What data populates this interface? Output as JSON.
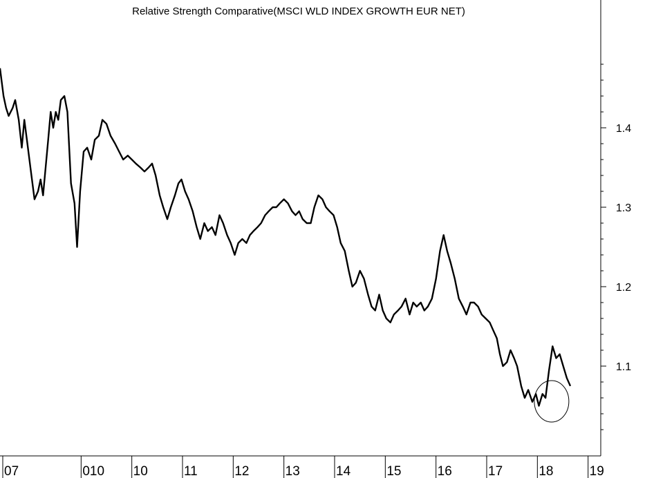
{
  "chart_data": {
    "type": "line",
    "title": "Relative Strength Comparative(MSCI WLD INDEX GROWTH EUR NET)",
    "xlabel": "",
    "ylabel": "",
    "ylim": [
      1.0,
      1.52
    ],
    "y_ticks": [
      "1.1",
      "1.2",
      "1.3",
      "1.4"
    ],
    "y_tick_values": [
      1.1,
      1.2,
      1.3,
      1.4
    ],
    "x_tick_labels": [
      "07",
      "010",
      "10",
      "11",
      "12",
      "13",
      "14",
      "15",
      "16",
      "17",
      "18",
      "19"
    ],
    "x_tick_positions": [
      2007.0,
      2008.6,
      2009.6,
      2010.6,
      2011.6,
      2012.6,
      2013.6,
      2014.6,
      2015.6,
      2016.6,
      2017.6,
      2018.6
    ],
    "xlim": [
      2007.0,
      2018.85
    ],
    "legend": "none",
    "grid": false,
    "line_color": "#000000",
    "annotation": {
      "type": "circle",
      "x": 2017.88,
      "y": 1.06,
      "description": "circle around recent low"
    },
    "series": [
      {
        "values": [
          [
            2007.0,
            1.475
          ],
          [
            2007.07,
            1.44
          ],
          [
            2007.12,
            1.425
          ],
          [
            2007.17,
            1.415
          ],
          [
            2007.25,
            1.425
          ],
          [
            2007.3,
            1.435
          ],
          [
            2007.37,
            1.41
          ],
          [
            2007.43,
            1.375
          ],
          [
            2007.48,
            1.41
          ],
          [
            2007.53,
            1.385
          ],
          [
            2007.6,
            1.35
          ],
          [
            2007.68,
            1.31
          ],
          [
            2007.75,
            1.32
          ],
          [
            2007.8,
            1.335
          ],
          [
            2007.85,
            1.315
          ],
          [
            2007.9,
            1.35
          ],
          [
            2007.95,
            1.385
          ],
          [
            2008.0,
            1.42
          ],
          [
            2008.05,
            1.4
          ],
          [
            2008.1,
            1.42
          ],
          [
            2008.15,
            1.41
          ],
          [
            2008.2,
            1.435
          ],
          [
            2008.27,
            1.44
          ],
          [
            2008.33,
            1.42
          ],
          [
            2008.4,
            1.33
          ],
          [
            2008.47,
            1.305
          ],
          [
            2008.52,
            1.25
          ],
          [
            2008.58,
            1.32
          ],
          [
            2008.65,
            1.37
          ],
          [
            2008.72,
            1.375
          ],
          [
            2008.8,
            1.36
          ],
          [
            2008.87,
            1.385
          ],
          [
            2008.95,
            1.39
          ],
          [
            2009.02,
            1.41
          ],
          [
            2009.1,
            1.405
          ],
          [
            2009.18,
            1.39
          ],
          [
            2009.27,
            1.38
          ],
          [
            2009.35,
            1.37
          ],
          [
            2009.43,
            1.36
          ],
          [
            2009.52,
            1.365
          ],
          [
            2009.6,
            1.36
          ],
          [
            2009.68,
            1.355
          ],
          [
            2009.77,
            1.35
          ],
          [
            2009.85,
            1.345
          ],
          [
            2009.93,
            1.35
          ],
          [
            2010.0,
            1.355
          ],
          [
            2010.07,
            1.34
          ],
          [
            2010.15,
            1.315
          ],
          [
            2010.22,
            1.3
          ],
          [
            2010.3,
            1.285
          ],
          [
            2010.37,
            1.3
          ],
          [
            2010.45,
            1.315
          ],
          [
            2010.52,
            1.33
          ],
          [
            2010.58,
            1.335
          ],
          [
            2010.65,
            1.32
          ],
          [
            2010.72,
            1.31
          ],
          [
            2010.8,
            1.295
          ],
          [
            2010.88,
            1.275
          ],
          [
            2010.95,
            1.26
          ],
          [
            2011.03,
            1.28
          ],
          [
            2011.1,
            1.27
          ],
          [
            2011.18,
            1.275
          ],
          [
            2011.25,
            1.265
          ],
          [
            2011.33,
            1.29
          ],
          [
            2011.4,
            1.28
          ],
          [
            2011.48,
            1.265
          ],
          [
            2011.55,
            1.255
          ],
          [
            2011.63,
            1.24
          ],
          [
            2011.7,
            1.255
          ],
          [
            2011.78,
            1.26
          ],
          [
            2011.86,
            1.255
          ],
          [
            2011.93,
            1.265
          ],
          [
            2012.0,
            1.27
          ],
          [
            2012.08,
            1.275
          ],
          [
            2012.15,
            1.28
          ],
          [
            2012.23,
            1.29
          ],
          [
            2012.3,
            1.295
          ],
          [
            2012.38,
            1.3
          ],
          [
            2012.45,
            1.3
          ],
          [
            2012.52,
            1.305
          ],
          [
            2012.6,
            1.31
          ],
          [
            2012.68,
            1.305
          ],
          [
            2012.76,
            1.295
          ],
          [
            2012.83,
            1.29
          ],
          [
            2012.9,
            1.295
          ],
          [
            2012.97,
            1.285
          ],
          [
            2013.05,
            1.28
          ],
          [
            2013.13,
            1.28
          ],
          [
            2013.2,
            1.3
          ],
          [
            2013.28,
            1.315
          ],
          [
            2013.36,
            1.31
          ],
          [
            2013.43,
            1.3
          ],
          [
            2013.5,
            1.295
          ],
          [
            2013.58,
            1.29
          ],
          [
            2013.65,
            1.275
          ],
          [
            2013.72,
            1.255
          ],
          [
            2013.8,
            1.245
          ],
          [
            2013.88,
            1.22
          ],
          [
            2013.95,
            1.2
          ],
          [
            2014.02,
            1.205
          ],
          [
            2014.1,
            1.22
          ],
          [
            2014.18,
            1.21
          ],
          [
            2014.26,
            1.19
          ],
          [
            2014.33,
            1.175
          ],
          [
            2014.4,
            1.17
          ],
          [
            2014.48,
            1.19
          ],
          [
            2014.55,
            1.17
          ],
          [
            2014.62,
            1.16
          ],
          [
            2014.7,
            1.155
          ],
          [
            2014.77,
            1.165
          ],
          [
            2014.85,
            1.17
          ],
          [
            2014.92,
            1.175
          ],
          [
            2015.0,
            1.185
          ],
          [
            2015.08,
            1.165
          ],
          [
            2015.15,
            1.18
          ],
          [
            2015.22,
            1.175
          ],
          [
            2015.3,
            1.18
          ],
          [
            2015.37,
            1.17
          ],
          [
            2015.44,
            1.175
          ],
          [
            2015.52,
            1.185
          ],
          [
            2015.6,
            1.21
          ],
          [
            2015.68,
            1.245
          ],
          [
            2015.75,
            1.265
          ],
          [
            2015.82,
            1.245
          ],
          [
            2015.89,
            1.23
          ],
          [
            2015.97,
            1.21
          ],
          [
            2016.05,
            1.185
          ],
          [
            2016.13,
            1.175
          ],
          [
            2016.2,
            1.165
          ],
          [
            2016.28,
            1.18
          ],
          [
            2016.35,
            1.18
          ],
          [
            2016.43,
            1.175
          ],
          [
            2016.5,
            1.165
          ],
          [
            2016.58,
            1.16
          ],
          [
            2016.66,
            1.155
          ],
          [
            2016.73,
            1.145
          ],
          [
            2016.8,
            1.135
          ],
          [
            2016.86,
            1.115
          ],
          [
            2016.92,
            1.1
          ],
          [
            2017.0,
            1.105
          ],
          [
            2017.07,
            1.12
          ],
          [
            2017.14,
            1.11
          ],
          [
            2017.2,
            1.1
          ],
          [
            2017.28,
            1.075
          ],
          [
            2017.35,
            1.06
          ],
          [
            2017.42,
            1.07
          ],
          [
            2017.5,
            1.055
          ],
          [
            2017.57,
            1.065
          ],
          [
            2017.63,
            1.05
          ],
          [
            2017.7,
            1.065
          ],
          [
            2017.76,
            1.06
          ],
          [
            2017.83,
            1.095
          ],
          [
            2017.9,
            1.125
          ],
          [
            2017.97,
            1.11
          ],
          [
            2018.04,
            1.115
          ],
          [
            2018.11,
            1.1
          ],
          [
            2018.18,
            1.085
          ],
          [
            2018.25,
            1.075
          ]
        ]
      }
    ]
  }
}
